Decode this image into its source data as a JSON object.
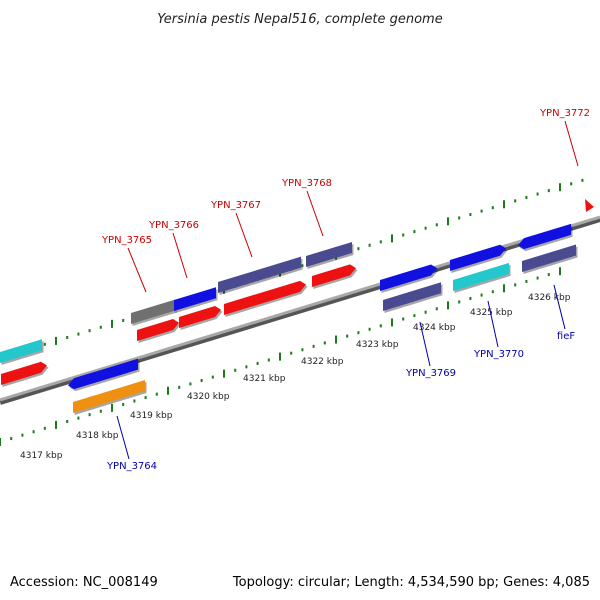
{
  "title": "Yersinia pestis Nepal516, complete genome",
  "footer": {
    "accession": "Accession: NC_008149",
    "summary": "Topology: circular; Length: 4,534,590 bp; Genes: 4,085"
  },
  "colors": {
    "red": "#ee1111",
    "blue": "#1010e0",
    "slate": "#4a4a90",
    "cyan": "#22c8cc",
    "orange": "#f09010",
    "gray": "#707070",
    "tick": "#1a7a1a",
    "label_red": "#cc0000",
    "label_blue": "#0000aa"
  },
  "kbp_labels": [
    "4317 kbp",
    "4318 kbp",
    "4319 kbp",
    "4320 kbp",
    "4321 kbp",
    "4322 kbp",
    "4323 kbp",
    "4324 kbp",
    "4325 kbp",
    "4326 kbp"
  ],
  "gene_labels_top": [
    "YPN_3765",
    "YPN_3766",
    "YPN_3767",
    "YPN_3768",
    "YPN_3772"
  ],
  "gene_labels_bottom": [
    "YPN_3764",
    "YPN_3769",
    "YPN_3770",
    "fieF"
  ]
}
